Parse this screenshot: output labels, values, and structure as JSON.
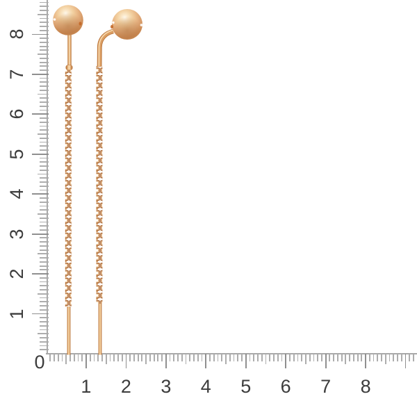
{
  "image_type": "jewelry product photo with measurement rulers",
  "ruler": {
    "origin_label": "0",
    "horizontal_labels": [
      "1",
      "2",
      "3",
      "4",
      "5",
      "6",
      "7",
      "8"
    ],
    "vertical_labels": [
      "1",
      "2",
      "3",
      "4",
      "5",
      "6",
      "7",
      "8"
    ],
    "tick_color": "#adadad",
    "major_tick_color": "#8f8f8f",
    "line_color": "#a8a8a8",
    "label_color": "#3c3c3c"
  },
  "product": {
    "name": "pair of gold ball threader drop earrings",
    "pieces": 2,
    "colors": {
      "gold_highlight": "#fff9ec",
      "gold_light": "#f3d2a3",
      "gold_mid": "#e9b887",
      "gold_shadow": "#cb8a55",
      "gold_dark_edge": "#ae6a35"
    }
  }
}
